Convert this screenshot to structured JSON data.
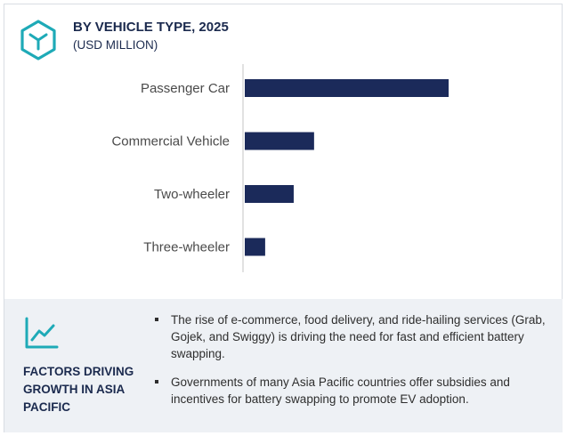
{
  "header": {
    "icon": "hexagon-box-icon",
    "title": "BY VEHICLE TYPE, 2025",
    "subtitle": "(USD MILLION)"
  },
  "colors": {
    "bar": "#1b2a5a",
    "accent": "#1eaab7",
    "navy": "#1b2a4e"
  },
  "chart_data": {
    "type": "bar",
    "orientation": "horizontal",
    "title": "BY VEHICLE TYPE, 2025",
    "subtitle": "(USD MILLION)",
    "categories": [
      "Passenger Car",
      "Commercial Vehicle",
      "Two-wheeler",
      "Three-wheeler"
    ],
    "values": [
      100,
      34,
      24,
      10
    ],
    "grid": false,
    "value_axis_shown": false
  },
  "factors": {
    "icon": "trend-line-icon",
    "title": "FACTORS DRIVING GROWTH IN ASIA PACIFIC",
    "bullets": [
      "The rise of e-commerce, food delivery, and ride-hailing services (Grab, Gojek, and Swiggy) is driving the need for fast and efficient battery swapping.",
      "Governments of many Asia Pacific countries offer subsidies and incentives for battery swapping to promote EV adoption."
    ]
  }
}
